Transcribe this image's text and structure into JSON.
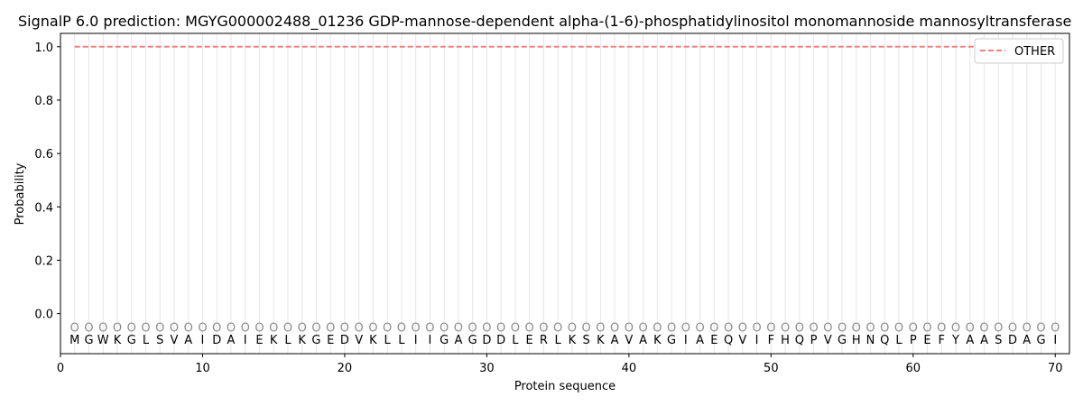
{
  "chart_data": {
    "type": "line",
    "title": "SignalP 6.0 prediction: MGYG000002488_01236 GDP-mannose-dependent alpha-(1-6)-phosphatidylinositol monomannoside mannosyltransferase",
    "xlabel": "Protein sequence",
    "ylabel": "Probability",
    "xlim": [
      0,
      71
    ],
    "ylim": [
      -0.15,
      1.05
    ],
    "xticks": [
      0,
      10,
      20,
      30,
      40,
      50,
      60,
      70
    ],
    "yticks": [
      0.0,
      0.2,
      0.4,
      0.6,
      0.8,
      1.0
    ],
    "ytick_labels": [
      "0.0",
      "0.2",
      "0.4",
      "0.6",
      "0.8",
      "1.0"
    ],
    "grid": "vertical lines at each residue",
    "legend_position": "top-right",
    "sequence": [
      "M",
      "G",
      "W",
      "K",
      "G",
      "L",
      "S",
      "V",
      "A",
      "I",
      "D",
      "A",
      "I",
      "E",
      "K",
      "L",
      "K",
      "G",
      "E",
      "D",
      "V",
      "K",
      "L",
      "L",
      "I",
      "I",
      "G",
      "A",
      "G",
      "D",
      "D",
      "L",
      "E",
      "R",
      "L",
      "K",
      "S",
      "K",
      "A",
      "V",
      "A",
      "K",
      "G",
      "I",
      "A",
      "E",
      "Q",
      "V",
      "I",
      "F",
      "H",
      "Q",
      "P",
      "V",
      "G",
      "H",
      "N",
      "Q",
      "L",
      "P",
      "E",
      "F",
      "Y",
      "A",
      "A",
      "S",
      "D",
      "A",
      "G",
      "I"
    ],
    "predicted_labels": [
      "O",
      "O",
      "O",
      "O",
      "O",
      "O",
      "O",
      "O",
      "O",
      "O",
      "O",
      "O",
      "O",
      "O",
      "O",
      "O",
      "O",
      "O",
      "O",
      "O",
      "O",
      "O",
      "O",
      "O",
      "O",
      "O",
      "O",
      "O",
      "O",
      "O",
      "O",
      "O",
      "O",
      "O",
      "O",
      "O",
      "O",
      "O",
      "O",
      "O",
      "O",
      "O",
      "O",
      "O",
      "O",
      "O",
      "O",
      "O",
      "O",
      "O",
      "O",
      "O",
      "O",
      "O",
      "O",
      "O",
      "O",
      "O",
      "O",
      "O",
      "O",
      "O",
      "O",
      "O",
      "O",
      "O",
      "O",
      "O",
      "O",
      "O"
    ],
    "series": [
      {
        "name": "OTHER",
        "color": "#f08080",
        "style": "dashed",
        "x_range": [
          1,
          70
        ],
        "value": 1.0
      }
    ]
  }
}
